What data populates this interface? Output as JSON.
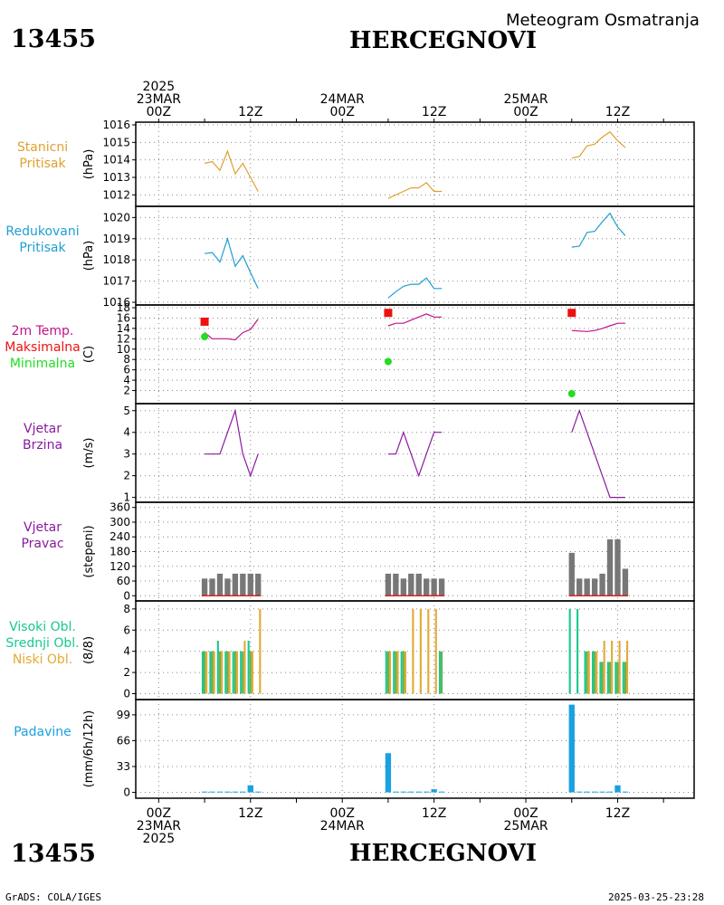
{
  "header": {
    "station_id": "13455",
    "station_name": "HERCEGNOVI",
    "subtitle": "Meteogram Osmatranja"
  },
  "footer": {
    "station_id": "13455",
    "station_name": "HERCEGNOVI",
    "credit": "GrADS: COLA/IGES",
    "timestamp": "2025-03-25-23:28"
  },
  "colors": {
    "pressure_station": "#e0a030",
    "pressure_reduced": "#1f9fd0",
    "temperature": "#c0128a",
    "temp_max": "#ee1111",
    "temp_min": "#22dd22",
    "wind": "#8a1aa0",
    "wind_dir_bar": "#777777",
    "wind_dir_base": "#dd2222",
    "cloud_high": "#17c98f",
    "cloud_mid": "#6ab04c",
    "cloud_low": "#e3aa33",
    "precip": "#1aa1e0"
  },
  "time_axis": {
    "top_ticks": [
      {
        "hour": 0,
        "lines": [
          "2025",
          "23MAR",
          "00Z"
        ]
      },
      {
        "hour": 12,
        "lines": [
          "12Z"
        ]
      },
      {
        "hour": 24,
        "lines": [
          "24MAR",
          "00Z"
        ]
      },
      {
        "hour": 36,
        "lines": [
          "12Z"
        ]
      },
      {
        "hour": 48,
        "lines": [
          "25MAR",
          "00Z"
        ]
      },
      {
        "hour": 60,
        "lines": [
          "12Z"
        ]
      }
    ],
    "bottom_ticks": [
      {
        "hour": 0,
        "lines": [
          "00Z",
          "23MAR",
          "2025"
        ]
      },
      {
        "hour": 12,
        "lines": [
          "12Z"
        ]
      },
      {
        "hour": 24,
        "lines": [
          "00Z",
          "24MAR"
        ]
      },
      {
        "hour": 36,
        "lines": [
          "12Z"
        ]
      },
      {
        "hour": 48,
        "lines": [
          "00Z",
          "25MAR"
        ]
      },
      {
        "hour": 60,
        "lines": [
          "12Z"
        ]
      }
    ],
    "range": [
      -3,
      70
    ]
  },
  "chart_data": [
    {
      "type": "line",
      "label_lines": [
        "Stanicni",
        "Pritisak"
      ],
      "ylabel": "(hPa)",
      "ylim": [
        1011.5,
        1016
      ],
      "yticks": [
        1012,
        1013,
        1014,
        1015,
        1016
      ],
      "series": [
        {
          "color_key": "pressure_station",
          "segments": [
            {
              "x": [
                6,
                7,
                8,
                9,
                10,
                11,
                12,
                13
              ],
              "y": [
                1013.8,
                1013.9,
                1013.4,
                1014.5,
                1013.2,
                1013.8,
                1013.0,
                1012.2
              ]
            },
            {
              "x": [
                30,
                31,
                32,
                33,
                34,
                35,
                36,
                37
              ],
              "y": [
                1011.8,
                1012.0,
                1012.2,
                1012.4,
                1012.4,
                1012.7,
                1012.2,
                1012.2
              ]
            },
            {
              "x": [
                54,
                55,
                56,
                57,
                58,
                59,
                60,
                61
              ],
              "y": [
                1014.1,
                1014.2,
                1014.8,
                1014.9,
                1015.3,
                1015.6,
                1015.1,
                1014.7
              ]
            }
          ]
        }
      ]
    },
    {
      "type": "line",
      "label_lines": [
        "Redukovani",
        "Pritisak"
      ],
      "ylabel": "(hPa)",
      "ylim": [
        1016,
        1020.4
      ],
      "yticks": [
        1016,
        1017,
        1018,
        1019,
        1020
      ],
      "series": [
        {
          "color_key": "pressure_reduced",
          "segments": [
            {
              "x": [
                6,
                7,
                8,
                9,
                10,
                11,
                12,
                13
              ],
              "y": [
                1018.3,
                1018.35,
                1017.9,
                1019.0,
                1017.7,
                1018.2,
                1017.4,
                1016.65
              ]
            },
            {
              "x": [
                30,
                31,
                32,
                33,
                34,
                35,
                36,
                37
              ],
              "y": [
                1016.2,
                1016.5,
                1016.75,
                1016.85,
                1016.85,
                1017.15,
                1016.65,
                1016.65
              ]
            },
            {
              "x": [
                54,
                55,
                56,
                57,
                58,
                59,
                60,
                61
              ],
              "y": [
                1018.6,
                1018.65,
                1019.3,
                1019.35,
                1019.8,
                1020.2,
                1019.55,
                1019.15
              ]
            }
          ]
        }
      ]
    },
    {
      "type": "line",
      "label_lines": [
        "2m Temp.",
        "Maksimalna",
        "Minimalna"
      ],
      "label_color_keys": [
        "temperature",
        "temp_max",
        "temp_min"
      ],
      "ylabel": "(C)",
      "ylim": [
        0,
        18
      ],
      "yticks": [
        2,
        4,
        6,
        8,
        10,
        12,
        14,
        16,
        18
      ],
      "series": [
        {
          "color_key": "temperature",
          "segments": [
            {
              "x": [
                6,
                7,
                8,
                9,
                10,
                11,
                12,
                13
              ],
              "y": [
                13.2,
                12.0,
                12.0,
                12.0,
                11.8,
                13.2,
                13.8,
                15.8
              ]
            },
            {
              "x": [
                30,
                31,
                32,
                33,
                34,
                35,
                36,
                37
              ],
              "y": [
                14.5,
                15.0,
                15.0,
                15.6,
                16.2,
                16.8,
                16.2,
                16.2
              ]
            },
            {
              "x": [
                54,
                55,
                56,
                57,
                58,
                59,
                60,
                61
              ],
              "y": [
                13.6,
                13.5,
                13.4,
                13.6,
                14.0,
                14.5,
                15.0,
                15.0
              ]
            }
          ]
        }
      ],
      "max_points": [
        {
          "x": 6,
          "y": 15.3
        },
        {
          "x": 30,
          "y": 17.0
        },
        {
          "x": 54,
          "y": 17.0
        }
      ],
      "min_points": [
        {
          "x": 6,
          "y": 12.4
        },
        {
          "x": 30,
          "y": 7.6
        },
        {
          "x": 54,
          "y": 1.4
        }
      ]
    },
    {
      "type": "line",
      "label_lines": [
        "Vjetar",
        "Brzina"
      ],
      "label_color_keys": [
        "wind",
        "wind"
      ],
      "ylabel": "(m/s)",
      "ylim": [
        0.9,
        5.2
      ],
      "yticks": [
        1,
        2,
        3,
        4,
        5
      ],
      "series": [
        {
          "color_key": "wind",
          "segments": [
            {
              "x": [
                6,
                8,
                10,
                11,
                12,
                13
              ],
              "y": [
                3,
                3,
                5,
                3,
                2,
                3
              ]
            },
            {
              "x": [
                30,
                31,
                32,
                34,
                36,
                37
              ],
              "y": [
                3,
                3,
                4,
                2,
                4,
                4
              ]
            },
            {
              "x": [
                54,
                55,
                58,
                59,
                60,
                61
              ],
              "y": [
                4,
                5,
                2,
                1,
                1,
                1
              ]
            }
          ]
        }
      ]
    },
    {
      "type": "bar",
      "label_lines": [
        "Vjetar",
        "Pravac"
      ],
      "label_color_keys": [
        "wind",
        "wind"
      ],
      "ylabel": "(stepeni)",
      "ylim": [
        -10,
        370
      ],
      "yticks": [
        0,
        60,
        120,
        180,
        240,
        300,
        360
      ],
      "series": [
        {
          "color_key": "wind_dir_bar",
          "x": [
            6,
            7,
            8,
            9,
            10,
            11,
            12,
            13,
            30,
            31,
            32,
            33,
            34,
            35,
            36,
            37,
            54,
            55,
            56,
            57,
            58,
            59,
            60,
            61
          ],
          "values": [
            70,
            70,
            90,
            70,
            90,
            90,
            90,
            90,
            90,
            90,
            70,
            90,
            90,
            70,
            70,
            70,
            175,
            70,
            70,
            70,
            90,
            230,
            230,
            110
          ]
        }
      ]
    },
    {
      "type": "bar",
      "label_lines": [
        "Visoki Obl.",
        "Srednji Obl.",
        "Niski Obl."
      ],
      "label_color_keys": [
        "cloud_high",
        "cloud_high",
        "cloud_low"
      ],
      "ylabel": "(8/8)",
      "ylim": [
        -0.3,
        8.5
      ],
      "yticks": [
        0,
        2,
        4,
        6,
        8
      ],
      "x": [
        6,
        7,
        8,
        9,
        10,
        11,
        12,
        13,
        30,
        31,
        32,
        33,
        34,
        35,
        36,
        37,
        54,
        55,
        56,
        57,
        58,
        59,
        60,
        61
      ],
      "series": [
        {
          "name": "Visoki Obl.",
          "color_key": "cloud_high",
          "values": [
            4,
            4,
            5,
            4,
            4,
            4,
            5,
            0,
            4,
            4,
            4,
            0,
            0,
            0,
            0,
            4,
            8,
            8,
            4,
            4,
            3,
            3,
            3,
            3
          ]
        },
        {
          "name": "Srednji Obl.",
          "color_key": "cloud_mid",
          "values": [
            4,
            4,
            4,
            4,
            4,
            4,
            4,
            0,
            4,
            4,
            4,
            0,
            0,
            0,
            0,
            4,
            0,
            0,
            4,
            4,
            3,
            3,
            3,
            3
          ]
        },
        {
          "name": "Niski Obl.",
          "color_key": "cloud_low",
          "values": [
            4,
            4,
            4,
            4,
            4,
            5,
            4,
            8,
            4,
            4,
            4,
            8,
            8,
            8,
            8,
            0,
            0,
            0,
            4,
            4,
            5,
            5,
            5,
            5
          ]
        }
      ]
    },
    {
      "type": "bar",
      "label_lines": [
        "Padavine"
      ],
      "label_color_keys": [
        "precip"
      ],
      "ylabel": "(mm/6h/12h)",
      "ylim": [
        -4,
        115
      ],
      "yticks": [
        0,
        33,
        66,
        99
      ],
      "series": [
        {
          "color_key": "precip",
          "x": [
            6,
            7,
            8,
            9,
            10,
            11,
            12,
            13,
            30,
            31,
            32,
            33,
            34,
            35,
            36,
            37,
            54,
            55,
            56,
            57,
            58,
            59,
            60,
            61
          ],
          "values": [
            1,
            1,
            1,
            1,
            1,
            1,
            9,
            1,
            50,
            1,
            1,
            1,
            1,
            1,
            4,
            1,
            112,
            1,
            1,
            1,
            1,
            1,
            9,
            1
          ]
        }
      ]
    }
  ]
}
